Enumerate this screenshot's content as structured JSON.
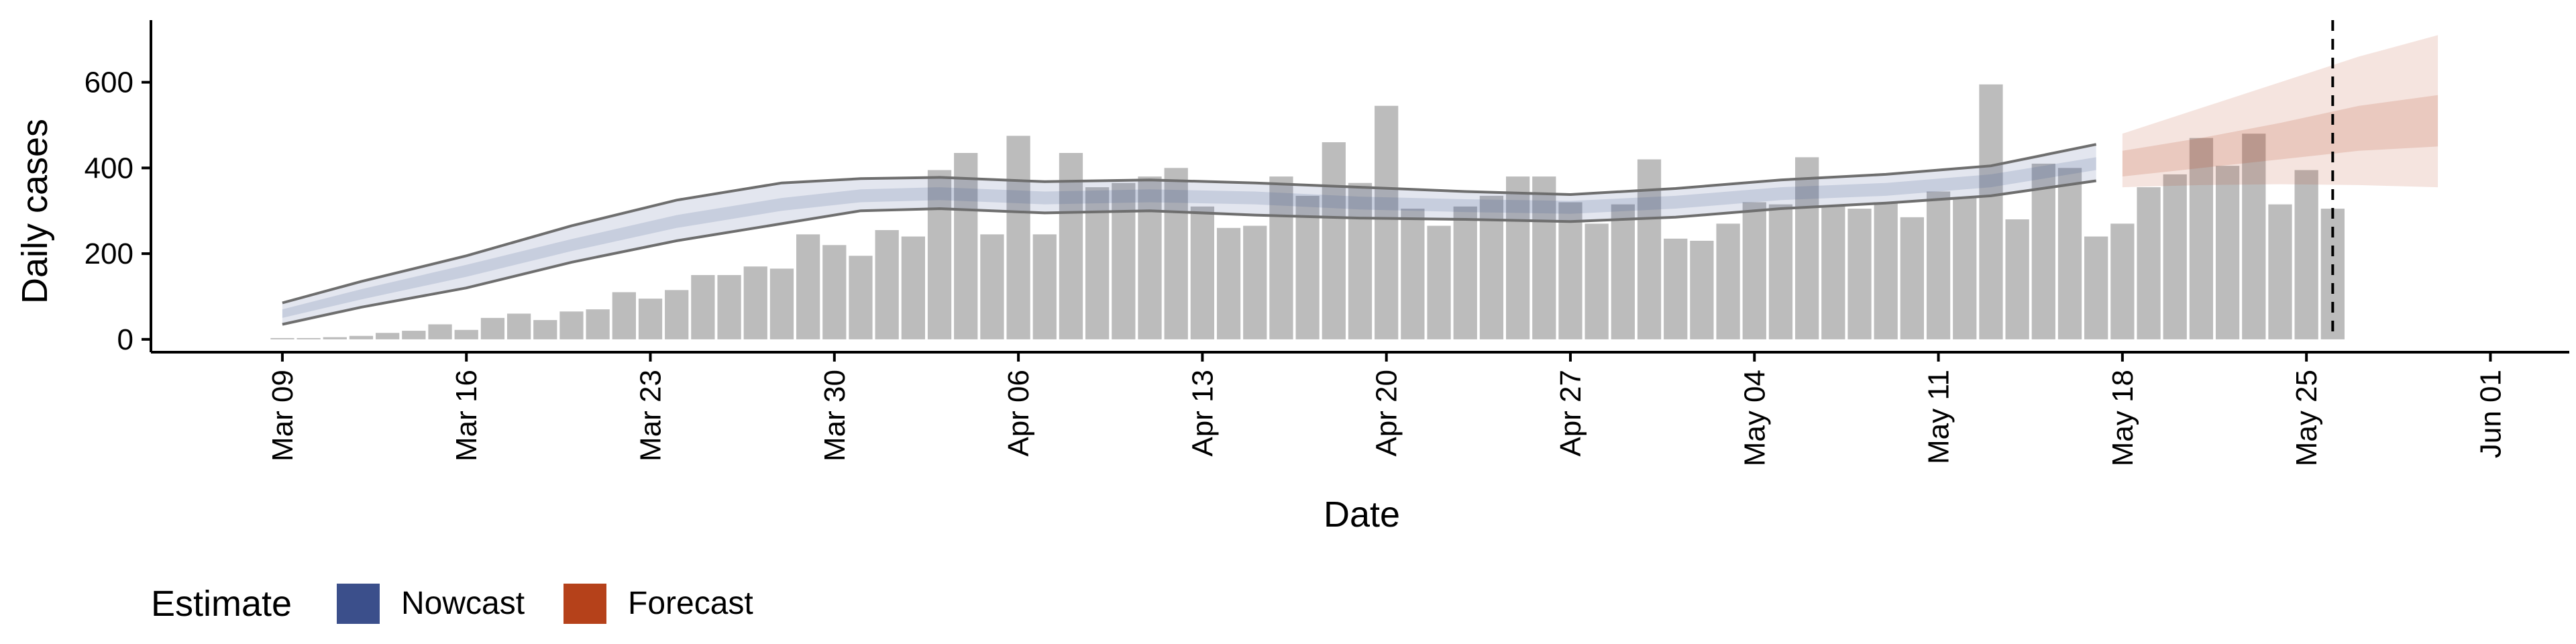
{
  "chart_data": {
    "type": "bar",
    "xlabel": "Date",
    "ylabel": "Daily cases",
    "ylim": [
      -30,
      745
    ],
    "y_ticks": [
      0,
      200,
      400,
      600
    ],
    "x_ticks": [
      {
        "date": "2020-03-09",
        "label": "Mar 09"
      },
      {
        "date": "2020-03-16",
        "label": "Mar 16"
      },
      {
        "date": "2020-03-23",
        "label": "Mar 23"
      },
      {
        "date": "2020-03-30",
        "label": "Mar 30"
      },
      {
        "date": "2020-04-06",
        "label": "Apr 06"
      },
      {
        "date": "2020-04-13",
        "label": "Apr 13"
      },
      {
        "date": "2020-04-20",
        "label": "Apr 20"
      },
      {
        "date": "2020-04-27",
        "label": "Apr 27"
      },
      {
        "date": "2020-05-04",
        "label": "May 04"
      },
      {
        "date": "2020-05-11",
        "label": "May 11"
      },
      {
        "date": "2020-05-18",
        "label": "May 18"
      },
      {
        "date": "2020-05-25",
        "label": "May 25"
      },
      {
        "date": "2020-06-01",
        "label": "Jun 01"
      }
    ],
    "xlim": [
      "2020-03-04",
      "2020-06-04"
    ],
    "bars": {
      "dates": [
        "2020-03-09",
        "2020-03-10",
        "2020-03-11",
        "2020-03-12",
        "2020-03-13",
        "2020-03-14",
        "2020-03-15",
        "2020-03-16",
        "2020-03-17",
        "2020-03-18",
        "2020-03-19",
        "2020-03-20",
        "2020-03-21",
        "2020-03-22",
        "2020-03-23",
        "2020-03-24",
        "2020-03-25",
        "2020-03-26",
        "2020-03-27",
        "2020-03-28",
        "2020-03-29",
        "2020-03-30",
        "2020-03-31",
        "2020-04-01",
        "2020-04-02",
        "2020-04-03",
        "2020-04-04",
        "2020-04-05",
        "2020-04-06",
        "2020-04-07",
        "2020-04-08",
        "2020-04-09",
        "2020-04-10",
        "2020-04-11",
        "2020-04-12",
        "2020-04-13",
        "2020-04-14",
        "2020-04-15",
        "2020-04-16",
        "2020-04-17",
        "2020-04-18",
        "2020-04-19",
        "2020-04-20",
        "2020-04-21",
        "2020-04-22",
        "2020-04-23",
        "2020-04-24",
        "2020-04-25",
        "2020-04-26",
        "2020-04-27",
        "2020-04-28",
        "2020-04-29",
        "2020-04-30",
        "2020-05-01",
        "2020-05-02",
        "2020-05-03",
        "2020-05-04",
        "2020-05-05",
        "2020-05-06",
        "2020-05-07",
        "2020-05-08",
        "2020-05-09",
        "2020-05-10",
        "2020-05-11",
        "2020-05-12",
        "2020-05-13",
        "2020-05-14",
        "2020-05-15",
        "2020-05-16",
        "2020-05-17",
        "2020-05-18",
        "2020-05-19",
        "2020-05-20",
        "2020-05-21",
        "2020-05-22",
        "2020-05-23",
        "2020-05-24",
        "2020-05-25",
        "2020-05-26"
      ],
      "values": [
        3,
        3,
        5,
        8,
        15,
        20,
        35,
        22,
        50,
        60,
        45,
        65,
        70,
        110,
        95,
        115,
        150,
        150,
        170,
        165,
        245,
        220,
        195,
        255,
        240,
        395,
        435,
        245,
        475,
        245,
        435,
        355,
        365,
        380,
        400,
        310,
        260,
        265,
        380,
        335,
        460,
        365,
        545,
        305,
        265,
        310,
        335,
        380,
        380,
        320,
        270,
        315,
        420,
        235,
        230,
        270,
        320,
        315,
        425,
        310,
        305,
        320,
        285,
        345,
        330,
        595,
        280,
        410,
        400,
        240,
        270,
        355,
        385,
        470,
        405,
        480,
        315,
        395,
        305
      ],
      "color": "#bcbcbc"
    },
    "series": [
      {
        "name": "Nowcast",
        "color": "#3b4f8b",
        "dates": [
          "2020-03-09",
          "2020-03-12",
          "2020-03-16",
          "2020-03-20",
          "2020-03-24",
          "2020-03-28",
          "2020-03-31",
          "2020-04-03",
          "2020-04-07",
          "2020-04-11",
          "2020-04-15",
          "2020-04-19",
          "2020-04-23",
          "2020-04-27",
          "2020-05-01",
          "2020-05-05",
          "2020-05-09",
          "2020-05-13",
          "2020-05-17"
        ],
        "median": [
          60,
          105,
          160,
          220,
          275,
          315,
          335,
          340,
          330,
          335,
          330,
          318,
          312,
          308,
          320,
          340,
          350,
          370,
          410
        ],
        "inner_lower": [
          50,
          93,
          146,
          206,
          260,
          300,
          320,
          325,
          315,
          320,
          315,
          303,
          297,
          293,
          305,
          325,
          335,
          355,
          395
        ],
        "inner_upper": [
          70,
          117,
          174,
          234,
          290,
          330,
          350,
          355,
          345,
          350,
          345,
          333,
          327,
          323,
          335,
          355,
          365,
          385,
          425
        ],
        "lower_90": [
          35,
          75,
          120,
          180,
          230,
          270,
          300,
          305,
          295,
          300,
          290,
          283,
          280,
          275,
          285,
          305,
          318,
          335,
          370
        ],
        "upper_90": [
          85,
          135,
          195,
          265,
          325,
          365,
          375,
          378,
          368,
          372,
          365,
          355,
          345,
          338,
          352,
          372,
          385,
          405,
          455
        ]
      },
      {
        "name": "Forecast",
        "color": "#b5411a",
        "dates": [
          "2020-05-18",
          "2020-05-21",
          "2020-05-24",
          "2020-05-27",
          "2020-05-30"
        ],
        "median": [
          415,
          435,
          455,
          480,
          500
        ],
        "inner_lower": [
          380,
          400,
          420,
          440,
          450
        ],
        "inner_upper": [
          440,
          470,
          505,
          545,
          570
        ],
        "lower_90": [
          355,
          360,
          362,
          360,
          355
        ],
        "upper_90": [
          480,
          540,
          600,
          660,
          710
        ]
      }
    ],
    "vline_date": "2020-05-26",
    "legend": {
      "title": "Estimate",
      "position": "bottom-left",
      "items": [
        {
          "label": "Nowcast",
          "color": "#3b4f8b"
        },
        {
          "label": "Forecast",
          "color": "#b5411a"
        }
      ]
    },
    "grid": false
  }
}
